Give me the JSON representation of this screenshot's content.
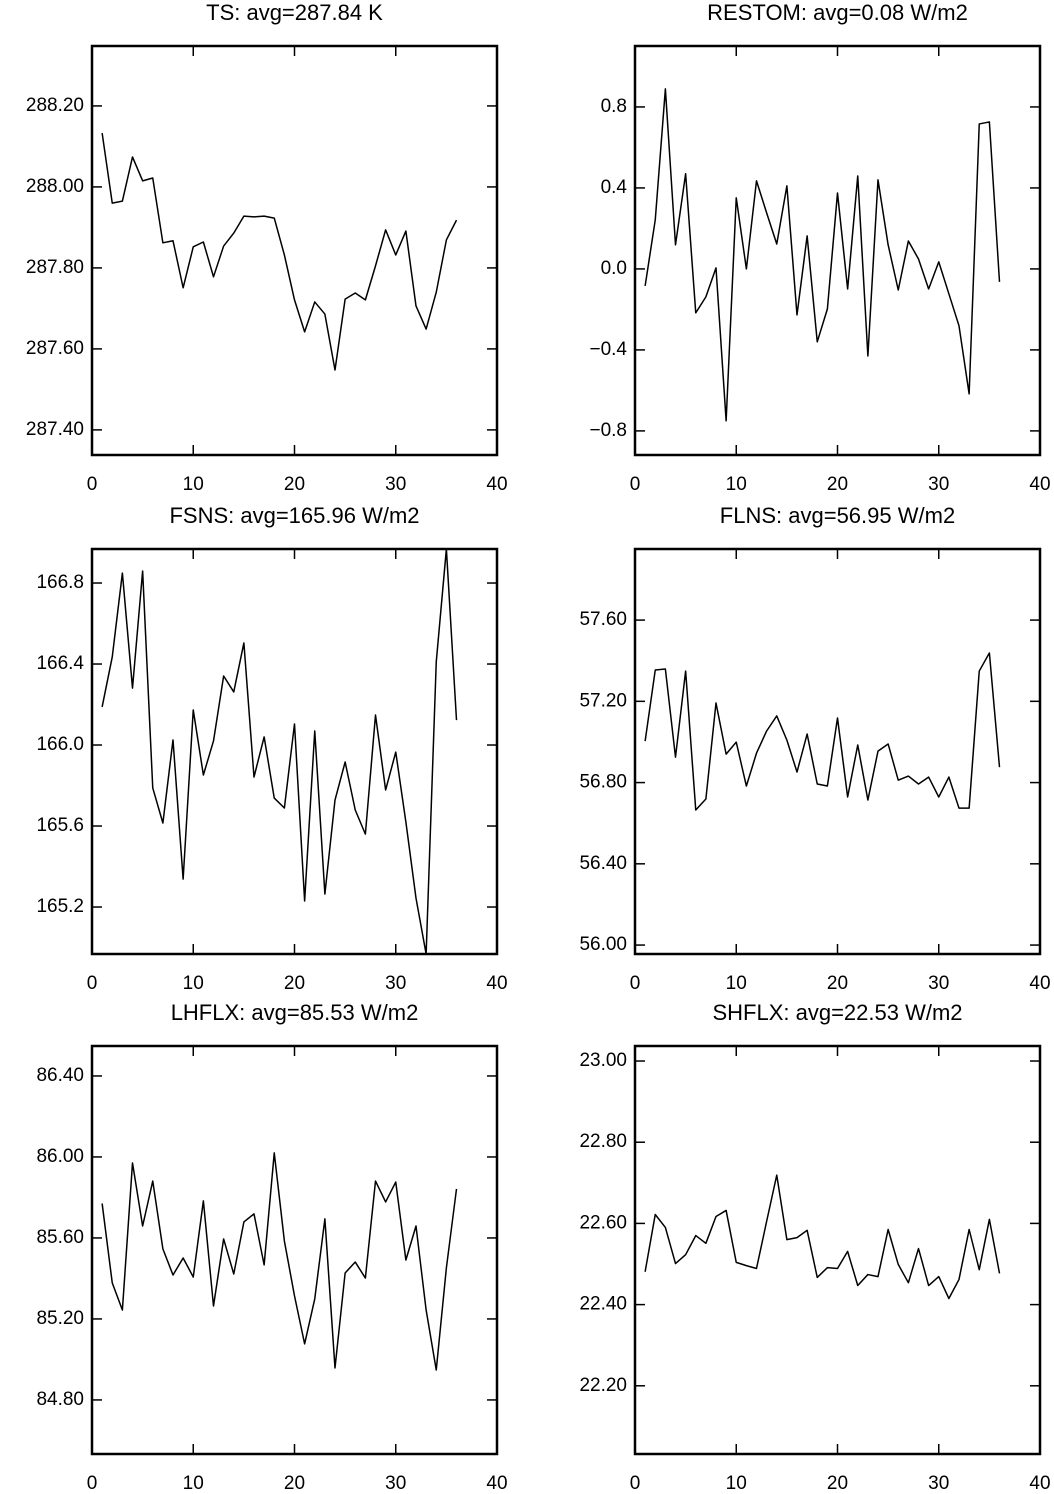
{
  "chart_data": [
    {
      "type": "line",
      "title": "TS: avg=287.84 K",
      "x": [
        1,
        2,
        3,
        4,
        5,
        6,
        7,
        8,
        9,
        10,
        11,
        12,
        13,
        14,
        15,
        16,
        17,
        18,
        19,
        20,
        21,
        22,
        23,
        24,
        25,
        26,
        27,
        28,
        29,
        30,
        31,
        32,
        33,
        34,
        35,
        36
      ],
      "values": [
        288.133,
        287.96,
        287.965,
        288.074,
        288.015,
        288.022,
        287.862,
        287.867,
        287.751,
        287.852,
        287.864,
        287.778,
        287.854,
        287.886,
        287.928,
        287.926,
        287.928,
        287.923,
        287.832,
        287.721,
        287.642,
        287.716,
        287.686,
        287.548,
        287.723,
        287.738,
        287.721,
        287.805,
        287.894,
        287.832,
        287.891,
        287.706,
        287.649,
        287.74,
        287.869,
        287.918
      ],
      "color": "#000000",
      "xlim": [
        0,
        40
      ],
      "xticks": [
        0,
        10,
        20,
        30,
        40
      ],
      "ylim": [
        287.338,
        288.348
      ],
      "yticks": [
        {
          "value": 287.4,
          "label": "287.40"
        },
        {
          "value": 287.6,
          "label": "287.60"
        },
        {
          "value": 287.8,
          "label": "287.80"
        },
        {
          "value": 288,
          "label": "288.00"
        },
        {
          "value": 288.2,
          "label": "288.20"
        }
      ]
    },
    {
      "type": "line",
      "title": "RESTOM: avg=0.08 W/m2",
      "x": [
        1,
        2,
        3,
        4,
        5,
        6,
        7,
        8,
        9,
        10,
        11,
        12,
        13,
        14,
        15,
        16,
        17,
        18,
        19,
        20,
        21,
        22,
        23,
        24,
        25,
        26,
        27,
        28,
        29,
        30,
        31,
        32,
        33,
        34,
        35,
        36
      ],
      "values": [
        -0.084,
        0.242,
        0.889,
        0.119,
        0.47,
        -0.217,
        -0.138,
        0.005,
        -0.75,
        0.351,
        0.0,
        0.435,
        0.277,
        0.123,
        0.41,
        -0.227,
        0.163,
        -0.36,
        -0.198,
        0.375,
        -0.099,
        0.459,
        -0.43,
        0.44,
        0.119,
        -0.104,
        0.138,
        0.049,
        -0.099,
        0.035,
        -0.123,
        -0.281,
        -0.617,
        0.716,
        0.726,
        -0.064
      ],
      "color": "#000000",
      "xlim": [
        0,
        40
      ],
      "xticks": [
        0,
        10,
        20,
        30,
        40
      ],
      "ylim": [
        -0.919,
        1.101
      ],
      "yticks": [
        {
          "value": -0.8,
          "label": "−0.8"
        },
        {
          "value": -0.4,
          "label": "−0.4"
        },
        {
          "value": 0,
          "label": "0.0"
        },
        0.4,
        0.8
      ]
    },
    {
      "type": "line",
      "title": "FSNS: avg=165.96 W/m2",
      "x": [
        1,
        2,
        3,
        4,
        5,
        6,
        7,
        8,
        9,
        10,
        11,
        12,
        13,
        14,
        15,
        16,
        17,
        18,
        19,
        20,
        21,
        22,
        23,
        24,
        25,
        26,
        27,
        28,
        29,
        30,
        31,
        32,
        33,
        34,
        35,
        36
      ],
      "values": [
        166.188,
        166.435,
        166.849,
        166.281,
        166.859,
        165.788,
        165.615,
        166.025,
        165.338,
        166.173,
        165.852,
        166.02,
        166.341,
        166.262,
        166.504,
        165.842,
        166.04,
        165.738,
        165.689,
        166.104,
        165.23,
        166.069,
        165.264,
        165.728,
        165.916,
        165.679,
        165.56,
        166.148,
        165.778,
        165.965,
        165.62,
        165.244,
        164.968,
        166.41,
        166.968,
        166.123
      ],
      "color": "#000000",
      "xlim": [
        0,
        40
      ],
      "xticks": [
        0,
        10,
        20,
        30,
        40
      ],
      "ylim": [
        164.968,
        166.968
      ],
      "yticks": [
        165.2,
        165.6,
        {
          "value": 166,
          "label": "166.0"
        },
        166.4,
        166.8
      ]
    },
    {
      "type": "line",
      "title": "FLNS: avg=56.95 W/m2",
      "x": [
        1,
        2,
        3,
        4,
        5,
        6,
        7,
        8,
        9,
        10,
        11,
        12,
        13,
        14,
        15,
        16,
        17,
        18,
        19,
        20,
        21,
        22,
        23,
        24,
        25,
        26,
        27,
        28,
        29,
        30,
        31,
        32,
        33,
        34,
        35,
        36
      ],
      "values": [
        57.004,
        57.354,
        57.359,
        56.925,
        57.349,
        56.665,
        56.719,
        57.192,
        56.94,
        56.999,
        56.783,
        56.945,
        57.054,
        57.128,
        57.009,
        56.852,
        57.039,
        56.793,
        56.783,
        57.118,
        56.729,
        56.985,
        56.714,
        56.955,
        56.99,
        56.812,
        56.832,
        56.793,
        56.827,
        56.729,
        56.827,
        56.674,
        56.674,
        57.349,
        57.438,
        56.876
      ],
      "color": "#000000",
      "xlim": [
        0,
        40
      ],
      "xticks": [
        0,
        10,
        20,
        30,
        40
      ],
      "ylim": [
        55.956,
        57.95
      ],
      "yticks": [
        {
          "value": 56,
          "label": "56.00"
        },
        {
          "value": 56.4,
          "label": "56.40"
        },
        {
          "value": 56.8,
          "label": "56.80"
        },
        {
          "value": 57.2,
          "label": "57.20"
        },
        {
          "value": 57.6,
          "label": "57.60"
        }
      ]
    },
    {
      "type": "line",
      "title": "LHFLX: avg=85.53 W/m2",
      "x": [
        1,
        2,
        3,
        4,
        5,
        6,
        7,
        8,
        9,
        10,
        11,
        12,
        13,
        14,
        15,
        16,
        17,
        18,
        19,
        20,
        21,
        22,
        23,
        24,
        25,
        26,
        27,
        28,
        29,
        30,
        31,
        32,
        33,
        34,
        35,
        36
      ],
      "values": [
        85.77,
        85.378,
        85.244,
        85.97,
        85.659,
        85.881,
        85.546,
        85.417,
        85.501,
        85.407,
        85.783,
        85.264,
        85.595,
        85.422,
        85.679,
        85.719,
        85.467,
        86.02,
        85.585,
        85.314,
        85.077,
        85.299,
        85.694,
        84.958,
        85.427,
        85.481,
        85.402,
        85.881,
        85.778,
        85.876,
        85.491,
        85.659,
        85.244,
        84.948,
        85.452,
        85.842
      ],
      "color": "#000000",
      "xlim": [
        0,
        40
      ],
      "xticks": [
        0,
        10,
        20,
        30,
        40
      ],
      "ylim": [
        84.533,
        86.548
      ],
      "yticks": [
        {
          "value": 84.8,
          "label": "84.80"
        },
        {
          "value": 85.2,
          "label": "85.20"
        },
        {
          "value": 85.6,
          "label": "85.60"
        },
        {
          "value": 86,
          "label": "86.00"
        },
        {
          "value": 86.4,
          "label": "86.40"
        }
      ]
    },
    {
      "type": "line",
      "title": "SHFLX: avg=22.53 W/m2",
      "x": [
        1,
        2,
        3,
        4,
        5,
        6,
        7,
        8,
        9,
        10,
        11,
        12,
        13,
        14,
        15,
        16,
        17,
        18,
        19,
        20,
        21,
        22,
        23,
        24,
        25,
        26,
        27,
        28,
        29,
        30,
        31,
        32,
        33,
        34,
        35,
        36
      ],
      "values": [
        22.481,
        22.622,
        22.59,
        22.501,
        22.523,
        22.57,
        22.551,
        22.617,
        22.632,
        22.504,
        22.496,
        22.489,
        22.605,
        22.719,
        22.56,
        22.565,
        22.583,
        22.467,
        22.491,
        22.489,
        22.531,
        22.447,
        22.474,
        22.469,
        22.585,
        22.499,
        22.454,
        22.538,
        22.447,
        22.469,
        22.415,
        22.462,
        22.585,
        22.486,
        22.61,
        22.477
      ],
      "color": "#000000",
      "xlim": [
        0,
        40
      ],
      "xticks": [
        0,
        10,
        20,
        30,
        40
      ],
      "ylim": [
        22.032,
        23.037
      ],
      "yticks": [
        {
          "value": 22.2,
          "label": "22.20"
        },
        {
          "value": 22.4,
          "label": "22.40"
        },
        {
          "value": 22.6,
          "label": "22.60"
        },
        {
          "value": 22.8,
          "label": "22.80"
        },
        {
          "value": 23,
          "label": "23.00"
        }
      ]
    }
  ]
}
